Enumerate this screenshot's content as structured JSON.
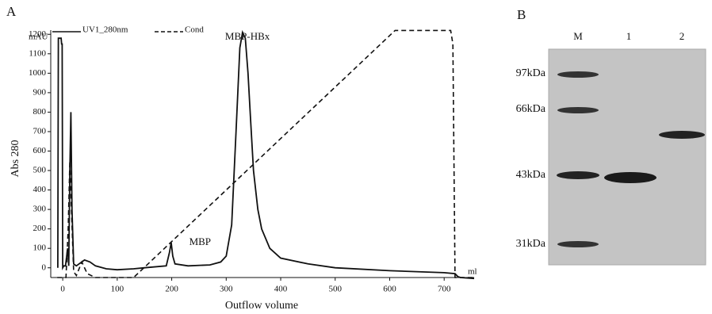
{
  "chart_data": {
    "type": "line",
    "panel_label": "A",
    "y_unit": "mAU",
    "ylabel": "Abs 280",
    "xlabel": "Outflow volume",
    "x_unit": "ml",
    "xlim": [
      -22,
      755
    ],
    "ylim": [
      -50,
      1250
    ],
    "xticks": [
      0,
      100,
      200,
      300,
      400,
      500,
      600,
      700
    ],
    "yticks": [
      0,
      100,
      200,
      300,
      400,
      500,
      600,
      700,
      800,
      900,
      1000,
      1100,
      1200
    ],
    "series": [
      {
        "name": "UV1_280nm",
        "color": "#111111",
        "dash": "solid",
        "x": [
          -9,
          -8,
          -3,
          -2,
          -1,
          0,
          2,
          5,
          9,
          11,
          13,
          15,
          17,
          20,
          25,
          30,
          40,
          50,
          60,
          80,
          100,
          130,
          150,
          190,
          196,
          199,
          202,
          206,
          230,
          270,
          290,
          300,
          310,
          318,
          325,
          330,
          335,
          340,
          345,
          350,
          358,
          365,
          380,
          400,
          450,
          500,
          600,
          700,
          720,
          725,
          730,
          755
        ],
        "values": [
          0,
          1180,
          1180,
          1150,
          1150,
          0,
          10,
          10,
          100,
          10,
          500,
          800,
          300,
          20,
          10,
          20,
          40,
          30,
          10,
          -5,
          -10,
          -5,
          0,
          10,
          80,
          130,
          60,
          20,
          10,
          15,
          30,
          60,
          220,
          700,
          1130,
          1210,
          1180,
          1000,
          750,
          500,
          300,
          200,
          100,
          50,
          20,
          0,
          -15,
          -25,
          -30,
          -45,
          -50,
          -55
        ]
      },
      {
        "name": "Cond",
        "color": "#111111",
        "dash": "dashed",
        "x": [
          -10,
          6,
          10,
          13,
          16,
          20,
          25,
          35,
          45,
          60,
          130,
          610,
          712,
          716,
          720,
          755
        ],
        "values": [
          -50,
          -50,
          200,
          550,
          300,
          -20,
          -40,
          30,
          -30,
          -50,
          -50,
          1220,
          1220,
          1150,
          -50,
          -50
        ]
      }
    ],
    "annotations": [
      {
        "text": "MBP",
        "x": 200,
        "y": 130
      },
      {
        "text": "MBP-HBx",
        "x": 330,
        "y": 1210
      }
    ]
  },
  "gel": {
    "panel_label": "B",
    "lanes": [
      "M",
      "1",
      "2"
    ],
    "markers": [
      "97kDa",
      "66kDa",
      "43kDa",
      "31kDa"
    ]
  }
}
